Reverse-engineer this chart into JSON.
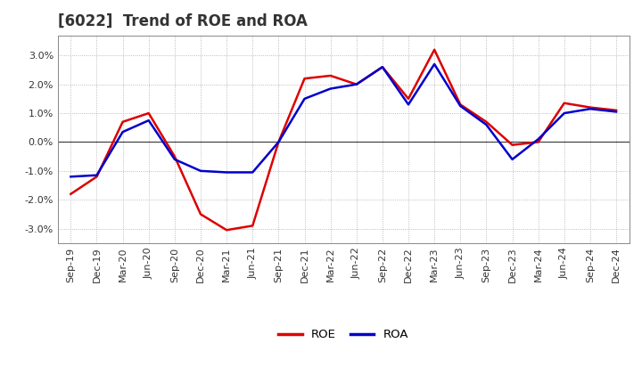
{
  "title": "[6022]  Trend of ROE and ROA",
  "x_labels": [
    "Sep-19",
    "Dec-19",
    "Mar-20",
    "Jun-20",
    "Sep-20",
    "Dec-20",
    "Mar-21",
    "Jun-21",
    "Sep-21",
    "Dec-21",
    "Mar-22",
    "Jun-22",
    "Sep-22",
    "Dec-22",
    "Mar-23",
    "Jun-23",
    "Sep-23",
    "Dec-23",
    "Mar-24",
    "Jun-24",
    "Sep-24",
    "Dec-24"
  ],
  "roe": [
    -1.8,
    -1.2,
    0.7,
    1.0,
    -0.5,
    -2.5,
    -3.05,
    -2.9,
    0.0,
    2.2,
    2.3,
    2.0,
    2.6,
    1.5,
    3.2,
    1.3,
    0.7,
    -0.1,
    0.0,
    1.35,
    1.2,
    1.1
  ],
  "roa": [
    -1.2,
    -1.15,
    0.35,
    0.75,
    -0.6,
    -1.0,
    -1.05,
    -1.05,
    0.0,
    1.5,
    1.85,
    2.0,
    2.6,
    1.3,
    2.7,
    1.25,
    0.6,
    -0.6,
    0.1,
    1.0,
    1.15,
    1.05
  ],
  "roe_color": "#dd0000",
  "roa_color": "#0000cc",
  "ylim": [
    -3.5,
    3.7
  ],
  "yticks": [
    -3.0,
    -2.0,
    -1.0,
    0.0,
    1.0,
    2.0,
    3.0
  ],
  "background_color": "#ffffff",
  "grid_color": "#aaaaaa",
  "linewidth": 1.8,
  "legend_labels": [
    "ROE",
    "ROA"
  ],
  "title_fontsize": 12,
  "tick_fontsize": 8
}
